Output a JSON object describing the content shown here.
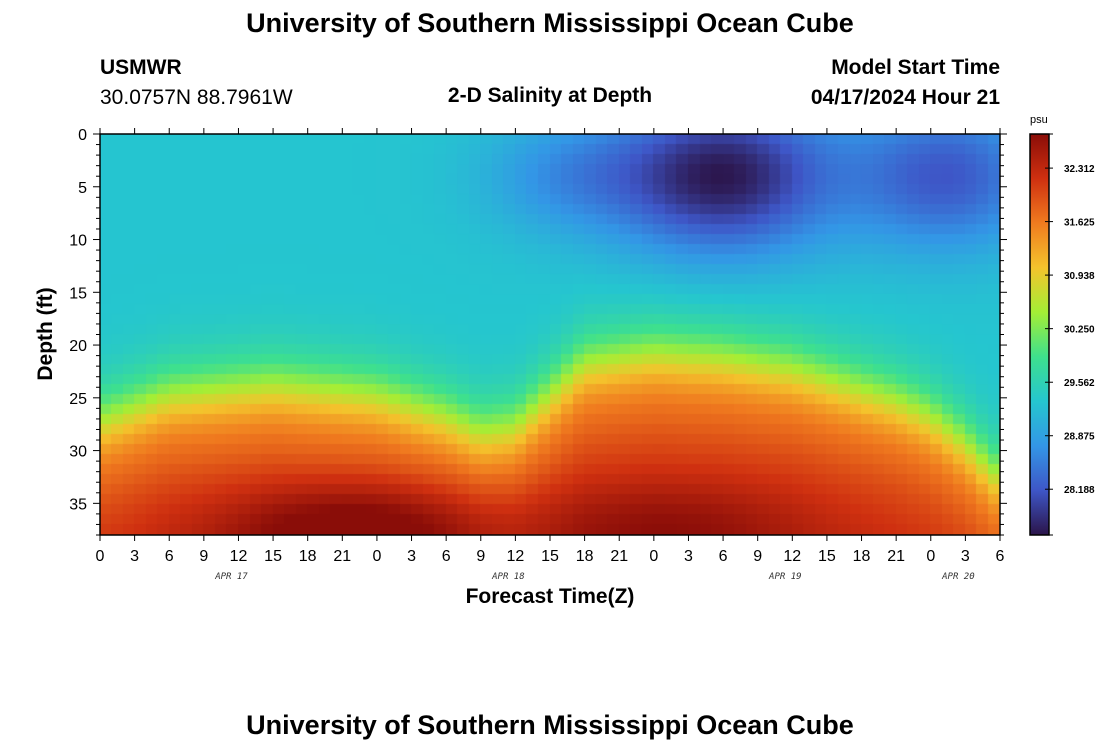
{
  "page": {
    "title_top": "University of Southern Mississippi Ocean Cube",
    "title_bottom": "University of Southern Mississippi Ocean Cube",
    "station": "USMWR",
    "coords": "30.0757N  88.7961W",
    "plot_title": "2-D Salinity at Depth",
    "model_start_label": "Model Start Time",
    "model_start_value": "04/17/2024 Hour 21"
  },
  "chart_data": {
    "type": "heatmap",
    "title": "2-D Salinity at Depth",
    "xlabel": "Forecast Time(Z)",
    "ylabel": "Depth (ft)",
    "x_tick_labels": [
      "0",
      "3",
      "6",
      "9",
      "12",
      "15",
      "18",
      "21",
      "0",
      "3",
      "6",
      "9",
      "12",
      "15",
      "18",
      "21",
      "0",
      "3",
      "6",
      "9",
      "12",
      "15",
      "18",
      "21",
      "0",
      "3",
      "6"
    ],
    "date_labels": [
      {
        "label": "APR 17",
        "tick_index": 4
      },
      {
        "label": "APR 18",
        "tick_index": 12
      },
      {
        "label": "APR 19",
        "tick_index": 20
      },
      {
        "label": "APR 20",
        "tick_index": 25
      }
    ],
    "y_ticks": [
      0,
      5,
      10,
      15,
      20,
      25,
      30,
      35
    ],
    "ylim": [
      38,
      0
    ],
    "colorbar": {
      "unit": "psu",
      "ticks": [
        32.312,
        31.625,
        30.938,
        30.25,
        29.562,
        28.875,
        28.188
      ],
      "tick_labels": [
        "32.312",
        "31.625",
        "30.938",
        "30.250",
        "29.562",
        "28.875",
        "28.188"
      ],
      "range": [
        27.6,
        32.75
      ],
      "colormap": [
        "#2b1449",
        "#3e56c7",
        "#3396e6",
        "#25c6cf",
        "#3ee08d",
        "#a4ee35",
        "#f4c32c",
        "#f07b1f",
        "#cf3010",
        "#8a0d08"
      ]
    },
    "surface_features": [
      {
        "x": 13.5,
        "z": 4.0,
        "value": 28.75,
        "sx": 2.5,
        "sz": 5.5
      },
      {
        "x": 18.0,
        "z": 4.0,
        "value": 27.65,
        "sx": 3.2,
        "sz": 7.5
      },
      {
        "x": 24.5,
        "z": 4.0,
        "value": 28.2,
        "sx": 2.8,
        "sz": 7.0
      }
    ],
    "surface_base_salinity": 29.3,
    "deep_salinity": 31.9,
    "halocline_depth_ft": [
      {
        "x": 0,
        "z": 27.5
      },
      {
        "x": 2,
        "z": 25.0
      },
      {
        "x": 5,
        "z": 24.0
      },
      {
        "x": 8,
        "z": 25.0
      },
      {
        "x": 10,
        "z": 27.0
      },
      {
        "x": 11,
        "z": 28.5
      },
      {
        "x": 12,
        "z": 28.0
      },
      {
        "x": 13,
        "z": 25.0
      },
      {
        "x": 14,
        "z": 22.0
      },
      {
        "x": 16,
        "z": 21.0
      },
      {
        "x": 18,
        "z": 21.5
      },
      {
        "x": 20,
        "z": 22.5
      },
      {
        "x": 21,
        "z": 23.5
      },
      {
        "x": 23,
        "z": 25.5
      },
      {
        "x": 24,
        "z": 27.0
      },
      {
        "x": 25,
        "z": 29.5
      },
      {
        "x": 26,
        "z": 33.0
      }
    ],
    "deep_max": [
      {
        "x": 7.5,
        "z": 37.5,
        "value": 32.7
      },
      {
        "x": 16.5,
        "z": 37.0,
        "value": 32.3
      }
    ]
  }
}
